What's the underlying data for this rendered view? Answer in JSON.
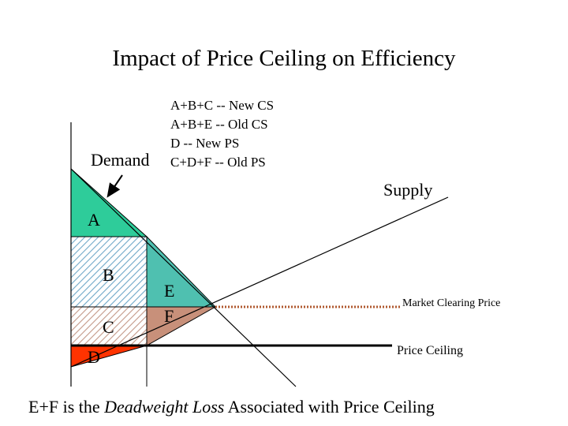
{
  "title": "Impact of Price Ceiling on Efficiency",
  "legend": [
    "A+B+C -- New CS",
    "A+B+E -- Old CS",
    "D -- New PS",
    "C+D+F -- Old PS"
  ],
  "labels": {
    "demand": "Demand",
    "supply": "Supply",
    "market_clearing_price": "Market Clearing Price",
    "price_ceiling": "Price Ceiling"
  },
  "regions": {
    "A": "A",
    "B": "B",
    "C": "C",
    "D": "D",
    "E": "E",
    "F": "F"
  },
  "caption": {
    "prefix": "E+F is the ",
    "emphasis": "Deadweight Loss",
    "suffix": " Associated with Price Ceiling"
  },
  "colors": {
    "A": "#2ecc9a",
    "B": "#6fa8c8",
    "C": "#c49a8a",
    "D": "#ff3300",
    "E": "#4fc0b0",
    "F": "#c8907a",
    "market_line": "#b05a30"
  }
}
